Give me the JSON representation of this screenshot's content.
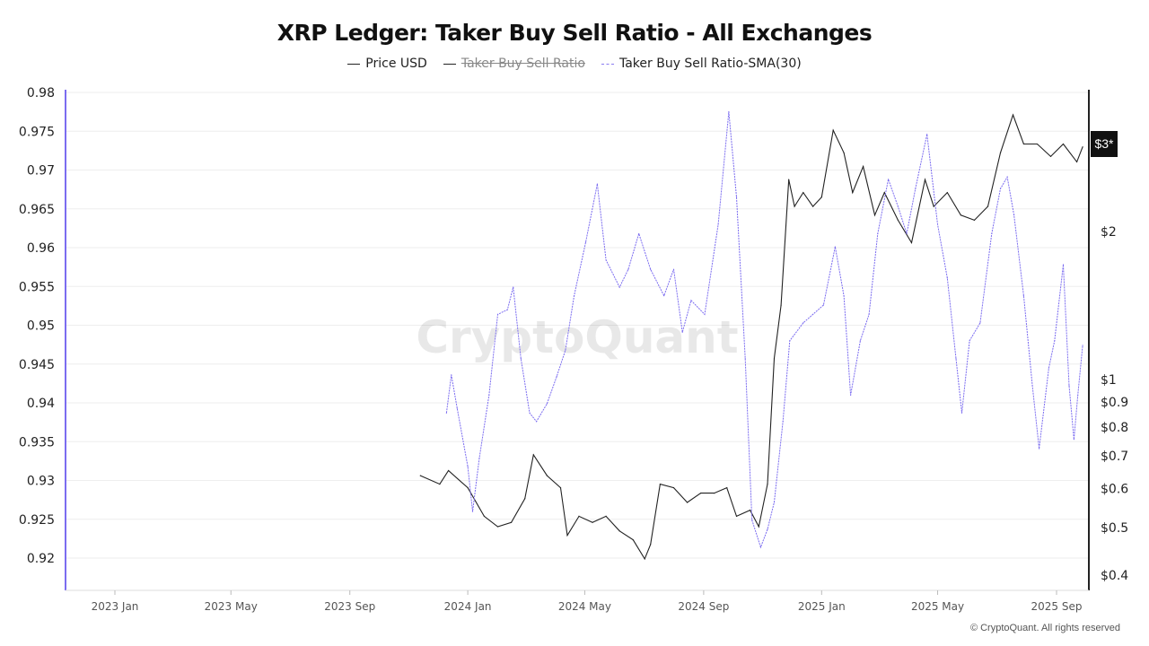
{
  "chart_data": {
    "type": "line",
    "title": "XRP Ledger: Taker Buy Sell Ratio - All Exchanges",
    "legend": [
      {
        "label": "Price USD",
        "visible": true,
        "color": "#222222",
        "style": "solid"
      },
      {
        "label": "Taker Buy Sell Ratio",
        "visible": false,
        "color": "#555555",
        "style": "solid"
      },
      {
        "label": "Taker Buy Sell Ratio-SMA(30)",
        "visible": true,
        "color": "#7b6cf0",
        "style": "dashed"
      }
    ],
    "legend_position": "top-center",
    "grid": "horizontal",
    "x_axis": {
      "type": "date",
      "range": [
        "2022-12-01",
        "2025-10-05"
      ],
      "ticks": [
        {
          "date": "2023-01-01",
          "label": "2023 Jan"
        },
        {
          "date": "2023-05-01",
          "label": "2023 May"
        },
        {
          "date": "2023-09-01",
          "label": "2023 Sep"
        },
        {
          "date": "2024-01-01",
          "label": "2024 Jan"
        },
        {
          "date": "2024-05-01",
          "label": "2024 May"
        },
        {
          "date": "2024-09-01",
          "label": "2024 Sep"
        },
        {
          "date": "2025-01-01",
          "label": "2025 Jan"
        },
        {
          "date": "2025-05-01",
          "label": "2025 May"
        },
        {
          "date": "2025-09-01",
          "label": "2025 Sep"
        }
      ]
    },
    "y_left": {
      "range": [
        0.9165,
        0.981
      ],
      "ticks": [
        "0.98",
        "0.975",
        "0.97",
        "0.965",
        "0.96",
        "0.955",
        "0.95",
        "0.945",
        "0.94",
        "0.935",
        "0.93",
        "0.925",
        "0.92"
      ]
    },
    "y_right": {
      "scale": "log",
      "range": [
        0.37,
        4.0
      ],
      "ticks": [
        {
          "value": 2,
          "label": "$2"
        },
        {
          "value": 1,
          "label": "$1"
        },
        {
          "value": 0.9,
          "label": "$0.9"
        },
        {
          "value": 0.8,
          "label": "$0.8"
        },
        {
          "value": 0.7,
          "label": "$0.7"
        },
        {
          "value": 0.6,
          "label": "$0.6"
        },
        {
          "value": 0.5,
          "label": "$0.5"
        },
        {
          "value": 0.4,
          "label": "$0.4"
        }
      ],
      "current_label": "$3*",
      "current_value": 3
    },
    "series": [
      {
        "name": "Price USD",
        "axis": "right",
        "points": [
          [
            "2023-11-13",
            0.635
          ],
          [
            "2023-12-03",
            0.61
          ],
          [
            "2023-12-12",
            0.65
          ],
          [
            "2024-01-01",
            0.6
          ],
          [
            "2024-01-18",
            0.525
          ],
          [
            "2024-02-01",
            0.5
          ],
          [
            "2024-02-15",
            0.51
          ],
          [
            "2024-02-29",
            0.57
          ],
          [
            "2024-03-09",
            0.7
          ],
          [
            "2024-03-23",
            0.635
          ],
          [
            "2024-04-06",
            0.6
          ],
          [
            "2024-04-13",
            0.48
          ],
          [
            "2024-04-25",
            0.525
          ],
          [
            "2024-05-09",
            0.51
          ],
          [
            "2024-05-23",
            0.525
          ],
          [
            "2024-06-06",
            0.49
          ],
          [
            "2024-06-20",
            0.47
          ],
          [
            "2024-07-02",
            0.43
          ],
          [
            "2024-07-08",
            0.46
          ],
          [
            "2024-07-18",
            0.61
          ],
          [
            "2024-08-01",
            0.6
          ],
          [
            "2024-08-15",
            0.56
          ],
          [
            "2024-08-29",
            0.585
          ],
          [
            "2024-09-12",
            0.585
          ],
          [
            "2024-09-25",
            0.6
          ],
          [
            "2024-10-05",
            0.525
          ],
          [
            "2024-10-19",
            0.54
          ],
          [
            "2024-10-28",
            0.5
          ],
          [
            "2024-11-06",
            0.61
          ],
          [
            "2024-11-13",
            1.1
          ],
          [
            "2024-11-20",
            1.41
          ],
          [
            "2024-11-28",
            2.54
          ],
          [
            "2024-12-04",
            2.24
          ],
          [
            "2024-12-13",
            2.39
          ],
          [
            "2024-12-23",
            2.24
          ],
          [
            "2025-01-01",
            2.34
          ],
          [
            "2025-01-13",
            3.2
          ],
          [
            "2025-01-24",
            2.88
          ],
          [
            "2025-02-02",
            2.39
          ],
          [
            "2025-02-13",
            2.7
          ],
          [
            "2025-02-25",
            2.15
          ],
          [
            "2025-03-07",
            2.39
          ],
          [
            "2025-03-21",
            2.1
          ],
          [
            "2025-04-04",
            1.89
          ],
          [
            "2025-04-18",
            2.54
          ],
          [
            "2025-04-27",
            2.24
          ],
          [
            "2025-05-11",
            2.39
          ],
          [
            "2025-05-25",
            2.15
          ],
          [
            "2025-06-08",
            2.1
          ],
          [
            "2025-06-22",
            2.24
          ],
          [
            "2025-07-05",
            2.88
          ],
          [
            "2025-07-18",
            3.44
          ],
          [
            "2025-07-29",
            3.0
          ],
          [
            "2025-08-12",
            3.0
          ],
          [
            "2025-08-26",
            2.83
          ],
          [
            "2025-09-08",
            3.0
          ],
          [
            "2025-09-22",
            2.76
          ],
          [
            "2025-09-28",
            2.96
          ]
        ]
      },
      {
        "name": "Taker Buy Sell Ratio-SMA(30)",
        "axis": "left",
        "points": [
          [
            "2023-12-10",
            0.9387
          ],
          [
            "2023-12-15",
            0.9436
          ],
          [
            "2023-12-21",
            0.9393
          ],
          [
            "2024-01-01",
            0.9318
          ],
          [
            "2024-01-06",
            0.926
          ],
          [
            "2024-01-13",
            0.9329
          ],
          [
            "2024-01-23",
            0.941
          ],
          [
            "2024-02-01",
            0.9514
          ],
          [
            "2024-02-11",
            0.952
          ],
          [
            "2024-02-17",
            0.9549
          ],
          [
            "2024-02-25",
            0.9457
          ],
          [
            "2024-03-05",
            0.9387
          ],
          [
            "2024-03-12",
            0.9376
          ],
          [
            "2024-03-23",
            0.9399
          ],
          [
            "2024-04-02",
            0.9434
          ],
          [
            "2024-04-11",
            0.9468
          ],
          [
            "2024-04-20",
            0.9538
          ],
          [
            "2024-05-02",
            0.9607
          ],
          [
            "2024-05-14",
            0.9682
          ],
          [
            "2024-05-23",
            0.9584
          ],
          [
            "2024-06-06",
            0.9549
          ],
          [
            "2024-06-15",
            0.9572
          ],
          [
            "2024-06-26",
            0.9618
          ],
          [
            "2024-07-08",
            0.9572
          ],
          [
            "2024-07-22",
            0.9538
          ],
          [
            "2024-08-01",
            0.9572
          ],
          [
            "2024-08-10",
            0.9491
          ],
          [
            "2024-08-19",
            0.9532
          ],
          [
            "2024-09-02",
            0.9514
          ],
          [
            "2024-09-16",
            0.963
          ],
          [
            "2024-09-27",
            0.9775
          ],
          [
            "2024-10-05",
            0.9665
          ],
          [
            "2024-10-14",
            0.9457
          ],
          [
            "2024-10-21",
            0.9249
          ],
          [
            "2024-10-30",
            0.9214
          ],
          [
            "2024-11-06",
            0.9237
          ],
          [
            "2024-11-13",
            0.9272
          ],
          [
            "2024-11-22",
            0.9376
          ],
          [
            "2024-11-29",
            0.948
          ],
          [
            "2024-12-13",
            0.9503
          ],
          [
            "2024-12-23",
            0.9514
          ],
          [
            "2025-01-03",
            0.9526
          ],
          [
            "2025-01-15",
            0.9601
          ],
          [
            "2025-01-24",
            0.9538
          ],
          [
            "2025-01-31",
            0.941
          ],
          [
            "2025-02-10",
            0.948
          ],
          [
            "2025-02-19",
            0.9514
          ],
          [
            "2025-02-28",
            0.9618
          ],
          [
            "2025-03-11",
            0.9688
          ],
          [
            "2025-03-21",
            0.9653
          ],
          [
            "2025-03-30",
            0.9618
          ],
          [
            "2025-04-08",
            0.9676
          ],
          [
            "2025-04-20",
            0.9746
          ],
          [
            "2025-05-01",
            0.963
          ],
          [
            "2025-05-11",
            0.9561
          ],
          [
            "2025-05-20",
            0.9457
          ],
          [
            "2025-05-26",
            0.9387
          ],
          [
            "2025-06-03",
            0.948
          ],
          [
            "2025-06-14",
            0.9503
          ],
          [
            "2025-06-26",
            0.9618
          ],
          [
            "2025-07-05",
            0.9676
          ],
          [
            "2025-07-12",
            0.9691
          ],
          [
            "2025-07-19",
            0.9642
          ],
          [
            "2025-07-29",
            0.9538
          ],
          [
            "2025-08-07",
            0.9422
          ],
          [
            "2025-08-14",
            0.9341
          ],
          [
            "2025-08-24",
            0.9445
          ],
          [
            "2025-08-30",
            0.948
          ],
          [
            "2025-09-08",
            0.9578
          ],
          [
            "2025-09-14",
            0.9422
          ],
          [
            "2025-09-19",
            0.9353
          ],
          [
            "2025-09-23",
            0.941
          ],
          [
            "2025-09-28",
            0.9474
          ]
        ]
      }
    ]
  },
  "watermark": "CryptoQuant",
  "footer": "© CryptoQuant. All rights reserved"
}
